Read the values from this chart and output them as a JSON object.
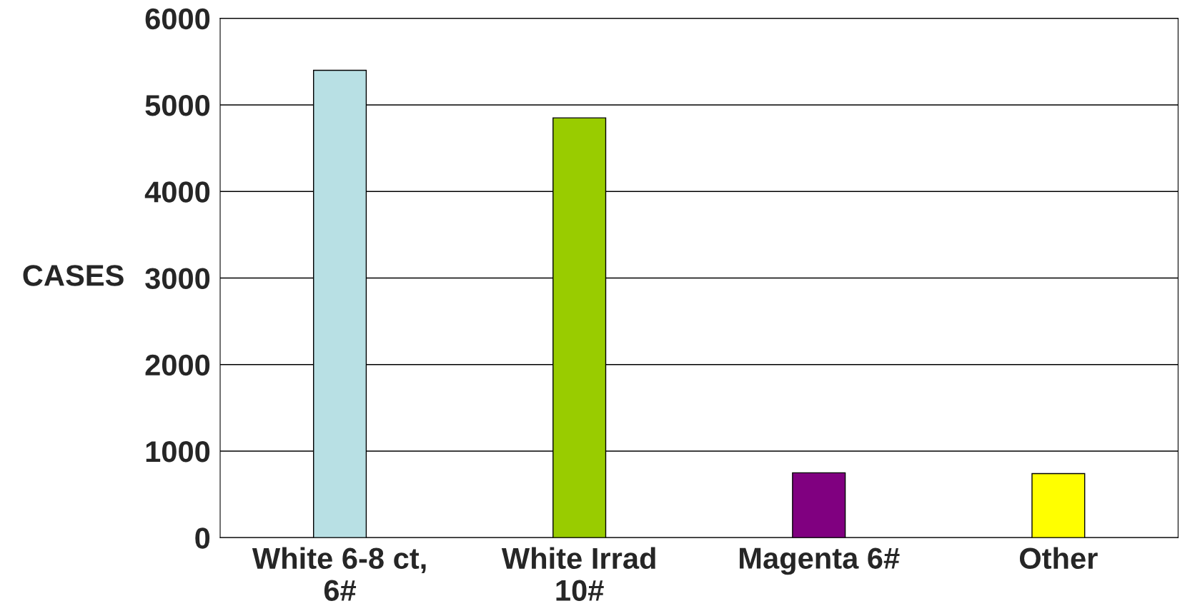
{
  "chart_data": {
    "type": "bar",
    "ylabel": "CASES",
    "categories": [
      "White 6-8 ct,\n6#",
      "White Irrad\n10#",
      "Magenta 6#",
      "Other"
    ],
    "values": [
      5400,
      4850,
      750,
      740
    ],
    "colors": [
      "#b8e0e4",
      "#99cc00",
      "#800080",
      "#ffff00"
    ],
    "ylim": [
      0,
      6000
    ],
    "yticks": [
      0,
      1000,
      2000,
      3000,
      4000,
      5000,
      6000
    ],
    "grid": "y",
    "legend": false
  }
}
